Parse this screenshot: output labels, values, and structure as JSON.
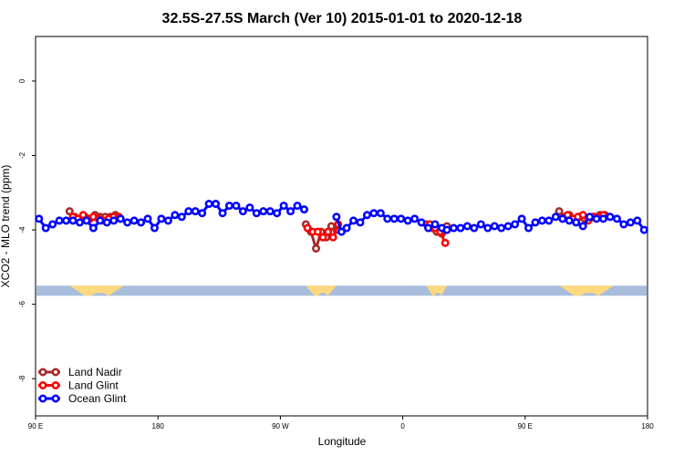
{
  "chart_data": {
    "type": "line",
    "title": "32.5S-27.5S March (Ver 10)   2015-01-01 to 2020-12-18",
    "xlabel": "Longitude",
    "ylabel": "XCO2 - MLO trend (ppm)",
    "xlim": [
      0,
      360
    ],
    "ylim": [
      -9.0,
      1.2
    ],
    "x_ticks": [
      {
        "value": 0,
        "label": "90 E"
      },
      {
        "value": 72,
        "label": "180"
      },
      {
        "value": 144,
        "label": "90 W"
      },
      {
        "value": 216,
        "label": "0"
      },
      {
        "value": 288,
        "label": "90 E"
      },
      {
        "value": 360,
        "label": "180"
      }
    ],
    "y_ticks": [
      {
        "value": 0,
        "label": "0"
      },
      {
        "value": -2,
        "label": "-2"
      },
      {
        "value": -4,
        "label": "-4"
      },
      {
        "value": -6,
        "label": "-6"
      },
      {
        "value": -8,
        "label": "-8"
      }
    ],
    "legend_position": "bottom-left",
    "land_band": {
      "y_range": [
        -5.77,
        -5.5
      ],
      "ocean_color": "#a8bddc",
      "land_color": "#fcd97e",
      "land_segments": [
        [
          20,
          52
        ],
        [
          159,
          177
        ],
        [
          230,
          242
        ],
        [
          308,
          340
        ]
      ]
    },
    "series": [
      {
        "name": "Land Nadir",
        "color": "#a52a2a",
        "segments": [
          [
            [
              20,
              -3.5
            ],
            [
              23,
              -3.65
            ],
            [
              26,
              -3.7
            ],
            [
              29,
              -3.65
            ],
            [
              32,
              -3.7
            ],
            [
              35,
              -3.6
            ],
            [
              38,
              -3.65
            ],
            [
              41,
              -3.65
            ],
            [
              44,
              -3.65
            ],
            [
              47,
              -3.6
            ],
            [
              50,
              -3.7
            ]
          ],
          [
            [
              159,
              -3.85
            ],
            [
              162,
              -4.05
            ],
            [
              165,
              -4.5
            ],
            [
              168,
              -4.05
            ],
            [
              171,
              -4.2
            ],
            [
              174,
              -3.9
            ],
            [
              177,
              -4.0
            ]
          ],
          [
            [
              230,
              -3.85
            ],
            [
              233,
              -3.95
            ],
            [
              236,
              -4.05
            ],
            [
              239,
              -4.1
            ],
            [
              242,
              -3.9
            ]
          ],
          [
            [
              308,
              -3.5
            ],
            [
              311,
              -3.65
            ],
            [
              314,
              -3.6
            ],
            [
              317,
              -3.7
            ],
            [
              320,
              -3.65
            ],
            [
              323,
              -3.7
            ],
            [
              326,
              -3.7
            ],
            [
              329,
              -3.65
            ],
            [
              332,
              -3.6
            ],
            [
              335,
              -3.6
            ],
            [
              338,
              -3.65
            ]
          ]
        ]
      },
      {
        "name": "Land Glint",
        "color": "#ff0000",
        "segments": [
          [
            [
              22,
              -3.65
            ],
            [
              25,
              -3.7
            ],
            [
              28,
              -3.6
            ],
            [
              31,
              -3.7
            ],
            [
              34,
              -3.65
            ],
            [
              37,
              -3.7
            ],
            [
              40,
              -3.75
            ],
            [
              43,
              -3.7
            ],
            [
              46,
              -3.65
            ],
            [
              49,
              -3.65
            ]
          ],
          [
            [
              160,
              -3.95
            ],
            [
              163,
              -4.05
            ],
            [
              166,
              -4.05
            ],
            [
              169,
              -4.2
            ],
            [
              172,
              -4.05
            ],
            [
              175,
              -4.2
            ],
            [
              178,
              -3.85
            ]
          ],
          [
            [
              232,
              -3.85
            ],
            [
              235,
              -3.95
            ],
            [
              238,
              -4.05
            ],
            [
              241,
              -4.35
            ]
          ],
          [
            [
              310,
              -3.7
            ],
            [
              313,
              -3.6
            ],
            [
              316,
              -3.7
            ],
            [
              319,
              -3.65
            ],
            [
              322,
              -3.6
            ],
            [
              325,
              -3.75
            ],
            [
              328,
              -3.65
            ],
            [
              331,
              -3.65
            ],
            [
              334,
              -3.6
            ]
          ]
        ]
      },
      {
        "name": "Ocean Glint",
        "color": "#0000ff",
        "segments": [
          [
            [
              2,
              -3.7
            ],
            [
              6,
              -3.95
            ],
            [
              10,
              -3.85
            ],
            [
              14,
              -3.75
            ],
            [
              18,
              -3.75
            ],
            [
              22,
              -3.75
            ],
            [
              26,
              -3.8
            ],
            [
              30,
              -3.75
            ],
            [
              34,
              -3.95
            ],
            [
              38,
              -3.75
            ],
            [
              42,
              -3.8
            ],
            [
              46,
              -3.75
            ],
            [
              50,
              -3.7
            ],
            [
              54,
              -3.8
            ],
            [
              58,
              -3.75
            ],
            [
              62,
              -3.8
            ],
            [
              66,
              -3.7
            ],
            [
              70,
              -3.95
            ],
            [
              74,
              -3.7
            ],
            [
              78,
              -3.75
            ],
            [
              82,
              -3.6
            ],
            [
              86,
              -3.65
            ],
            [
              90,
              -3.5
            ],
            [
              94,
              -3.5
            ],
            [
              98,
              -3.55
            ],
            [
              102,
              -3.3
            ],
            [
              106,
              -3.3
            ],
            [
              110,
              -3.55
            ],
            [
              114,
              -3.35
            ],
            [
              118,
              -3.35
            ],
            [
              122,
              -3.5
            ],
            [
              126,
              -3.4
            ],
            [
              130,
              -3.55
            ],
            [
              134,
              -3.5
            ],
            [
              138,
              -3.5
            ],
            [
              142,
              -3.55
            ],
            [
              146,
              -3.35
            ],
            [
              150,
              -3.5
            ],
            [
              154,
              -3.35
            ],
            [
              158,
              -3.45
            ]
          ],
          [
            [
              177,
              -3.65
            ],
            [
              180,
              -4.05
            ],
            [
              183,
              -3.95
            ],
            [
              187,
              -3.75
            ],
            [
              191,
              -3.8
            ],
            [
              195,
              -3.6
            ],
            [
              199,
              -3.55
            ],
            [
              203,
              -3.55
            ],
            [
              207,
              -3.7
            ],
            [
              211,
              -3.7
            ],
            [
              215,
              -3.7
            ],
            [
              219,
              -3.75
            ],
            [
              223,
              -3.7
            ],
            [
              227,
              -3.8
            ],
            [
              231,
              -3.95
            ],
            [
              235,
              -3.85
            ],
            [
              239,
              -3.95
            ],
            [
              242,
              -4.0
            ],
            [
              246,
              -3.95
            ],
            [
              250,
              -3.95
            ],
            [
              254,
              -3.9
            ],
            [
              258,
              -3.95
            ],
            [
              262,
              -3.85
            ],
            [
              266,
              -3.95
            ],
            [
              270,
              -3.9
            ],
            [
              274,
              -3.95
            ],
            [
              278,
              -3.9
            ],
            [
              282,
              -3.85
            ],
            [
              286,
              -3.7
            ],
            [
              290,
              -3.95
            ],
            [
              294,
              -3.8
            ],
            [
              298,
              -3.75
            ],
            [
              302,
              -3.75
            ],
            [
              306,
              -3.65
            ],
            [
              310,
              -3.7
            ],
            [
              314,
              -3.75
            ],
            [
              318,
              -3.8
            ],
            [
              322,
              -3.9
            ],
            [
              326,
              -3.65
            ],
            [
              330,
              -3.7
            ],
            [
              334,
              -3.7
            ],
            [
              338,
              -3.65
            ],
            [
              342,
              -3.7
            ],
            [
              346,
              -3.85
            ],
            [
              350,
              -3.8
            ],
            [
              354,
              -3.75
            ],
            [
              358,
              -4.0
            ]
          ]
        ]
      }
    ]
  }
}
